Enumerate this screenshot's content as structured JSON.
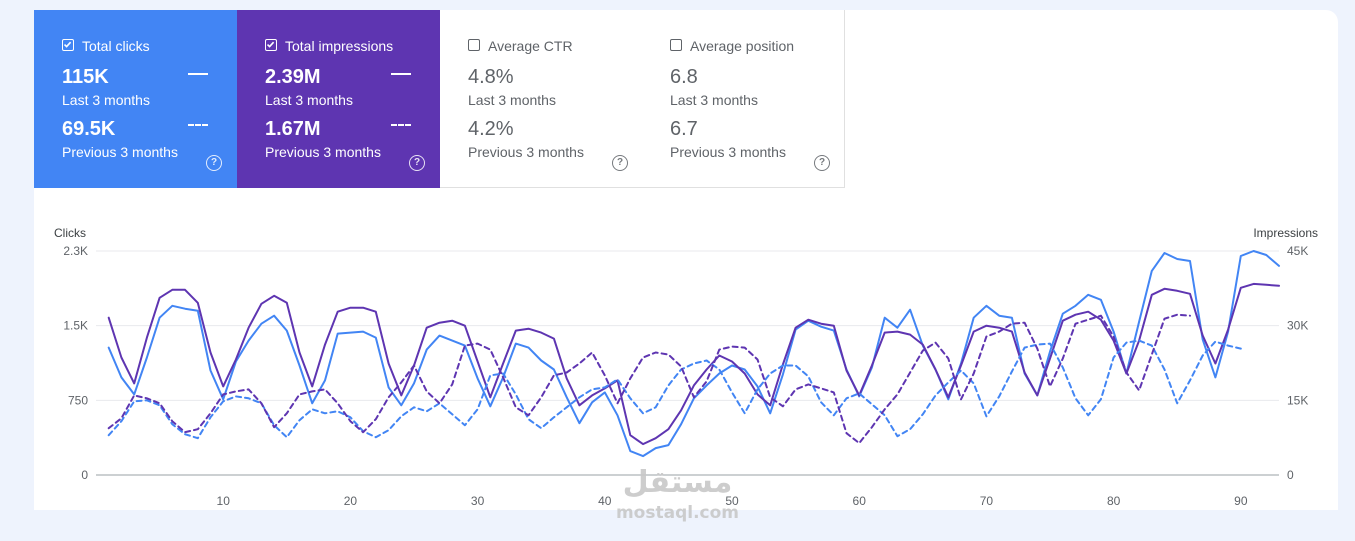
{
  "metrics": {
    "clicks": {
      "label": "Total clicks",
      "checked": true,
      "current_value": "115K",
      "current_period": "Last 3 months",
      "previous_value": "69.5K",
      "previous_period": "Previous 3 months",
      "color": "#4285f4"
    },
    "impressions": {
      "label": "Total impressions",
      "checked": true,
      "current_value": "2.39M",
      "current_period": "Last 3 months",
      "previous_value": "1.67M",
      "previous_period": "Previous 3 months",
      "color": "#5e35b1"
    },
    "ctr": {
      "label": "Average CTR",
      "checked": false,
      "current_value": "4.8%",
      "current_period": "Last 3 months",
      "previous_value": "4.2%",
      "previous_period": "Previous 3 months"
    },
    "position": {
      "label": "Average position",
      "checked": false,
      "current_value": "6.8",
      "current_period": "Last 3 months",
      "previous_value": "6.7",
      "previous_period": "Previous 3 months"
    },
    "help_glyph": "?"
  },
  "watermark": {
    "arabic": "مستقل",
    "latin": "mostaql.com"
  },
  "chart_data": {
    "type": "line",
    "left_axis": {
      "title": "Clicks",
      "ticks": [
        "0",
        "750",
        "1.5K",
        "2.3K"
      ],
      "tick_values": [
        0,
        750,
        1500,
        2250
      ],
      "range": [
        0,
        2250
      ]
    },
    "right_axis": {
      "title": "Impressions",
      "ticks": [
        "0",
        "15K",
        "30K",
        "45K"
      ],
      "tick_values": [
        0,
        15000,
        30000,
        45000
      ],
      "range": [
        0,
        45000
      ]
    },
    "x_ticks": [
      10,
      20,
      30,
      40,
      50,
      60,
      70,
      80,
      90
    ],
    "x_range": [
      0,
      93
    ],
    "grid": true,
    "series": [
      {
        "name": "Total clicks",
        "axis": "left",
        "style": "solid",
        "color": "#4285f4",
        "values": [
          1280,
          980,
          810,
          1180,
          1580,
          1700,
          1670,
          1650,
          1050,
          760,
          1140,
          1350,
          1520,
          1600,
          1450,
          1100,
          720,
          950,
          1420,
          1430,
          1440,
          1380,
          880,
          700,
          920,
          1260,
          1400,
          1350,
          1300,
          970,
          690,
          980,
          1320,
          1280,
          1150,
          1060,
          780,
          520,
          730,
          830,
          600,
          240,
          190,
          270,
          300,
          510,
          770,
          900,
          1020,
          1100,
          1060,
          890,
          620,
          1010,
          1460,
          1550,
          1490,
          1450,
          1060,
          790,
          1080,
          1580,
          1480,
          1660,
          1300,
          1060,
          760,
          1120,
          1580,
          1700,
          1600,
          1580,
          1020,
          800,
          1240,
          1620,
          1700,
          1810,
          1760,
          1440,
          1020,
          1540,
          2050,
          2230,
          2170,
          2150,
          1360,
          980,
          1440,
          2200,
          2250,
          2210,
          2100
        ]
      },
      {
        "name": "Total impressions",
        "axis": "left",
        "style": "solid",
        "color": "#5e35b1",
        "values": [
          1580,
          1180,
          920,
          1380,
          1780,
          1860,
          1860,
          1730,
          1230,
          890,
          1160,
          1480,
          1720,
          1800,
          1730,
          1230,
          890,
          1310,
          1640,
          1680,
          1680,
          1640,
          1120,
          800,
          1100,
          1480,
          1530,
          1550,
          1500,
          1140,
          780,
          1120,
          1450,
          1470,
          1430,
          1370,
          970,
          700,
          800,
          870,
          950,
          400,
          310,
          370,
          460,
          650,
          900,
          1060,
          1200,
          1140,
          1020,
          810,
          700,
          1110,
          1480,
          1560,
          1520,
          1500,
          1050,
          800,
          1100,
          1430,
          1440,
          1410,
          1310,
          1060,
          780,
          1100,
          1440,
          1500,
          1480,
          1440,
          1030,
          800,
          1170,
          1550,
          1610,
          1640,
          1560,
          1350,
          1020,
          1350,
          1810,
          1870,
          1850,
          1820,
          1400,
          1120,
          1460,
          1880,
          1920,
          1910,
          1900
        ]
      },
      {
        "name": "Total clicks (previous 3 months)",
        "axis": "left",
        "style": "dashed",
        "color": "#4285f4",
        "values": [
          400,
          540,
          740,
          750,
          700,
          510,
          410,
          370,
          580,
          740,
          790,
          770,
          720,
          500,
          380,
          550,
          660,
          620,
          640,
          580,
          440,
          380,
          450,
          590,
          680,
          640,
          720,
          610,
          500,
          660,
          1000,
          1020,
          810,
          560,
          470,
          580,
          680,
          780,
          860,
          880,
          960,
          770,
          620,
          680,
          900,
          1060,
          1120,
          1150,
          1060,
          830,
          620,
          860,
          1020,
          1100,
          1100,
          990,
          730,
          600,
          770,
          820,
          710,
          600,
          390,
          460,
          610,
          800,
          930,
          1050,
          920,
          590,
          790,
          1040,
          1280,
          1310,
          1320,
          1080,
          770,
          600,
          760,
          1180,
          1330,
          1350,
          1300,
          1060,
          720,
          950,
          1200,
          1340,
          1300,
          1270
        ]
      },
      {
        "name": "Total impressions (previous 3 months)",
        "axis": "left",
        "style": "dashed",
        "color": "#5e35b1",
        "values": [
          470,
          570,
          800,
          770,
          720,
          540,
          430,
          460,
          620,
          810,
          840,
          860,
          720,
          480,
          620,
          810,
          840,
          860,
          720,
          540,
          430,
          560,
          780,
          930,
          1100,
          840,
          720,
          910,
          1300,
          1320,
          1260,
          980,
          680,
          600,
          780,
          1000,
          1030,
          1120,
          1230,
          1000,
          720,
          970,
          1180,
          1230,
          1210,
          1090,
          780,
          940,
          1260,
          1290,
          1280,
          1160,
          780,
          690,
          860,
          910,
          870,
          830,
          420,
          320,
          480,
          660,
          810,
          1030,
          1250,
          1330,
          1170,
          760,
          1020,
          1390,
          1440,
          1520,
          1530,
          1270,
          890,
          1170,
          1520,
          1560,
          1600,
          1390,
          1030,
          850,
          1210,
          1570,
          1610,
          1600
        ]
      }
    ]
  }
}
